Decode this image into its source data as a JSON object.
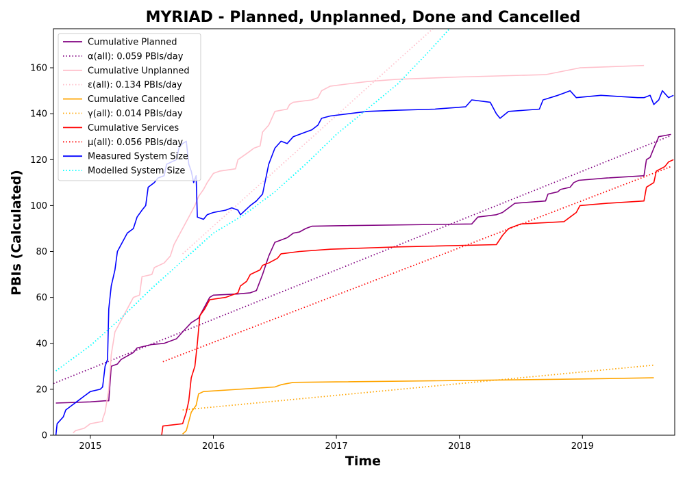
{
  "chart_data": {
    "type": "line",
    "title": "MYRIAD - Planned, Unplanned, Done  and Cancelled",
    "xlabel": "Time",
    "ylabel": "PBIs (Calculated)",
    "xlim": [
      2014.7,
      2019.75
    ],
    "ylim": [
      0,
      177
    ],
    "xticks": [
      2015,
      2016,
      2017,
      2018,
      2019
    ],
    "yticks": [
      0,
      20,
      40,
      60,
      80,
      100,
      120,
      140,
      160
    ],
    "grid": false,
    "legend_position": "top-left",
    "series": [
      {
        "name": "Cumulative Planned",
        "color": "#800080",
        "style": "solid",
        "points": [
          [
            2014.72,
            14
          ],
          [
            2015.0,
            14.5
          ],
          [
            2015.12,
            15
          ],
          [
            2015.15,
            15
          ],
          [
            2015.17,
            30
          ],
          [
            2015.22,
            31
          ],
          [
            2015.25,
            33
          ],
          [
            2015.35,
            36
          ],
          [
            2015.38,
            38
          ],
          [
            2015.5,
            39.5
          ],
          [
            2015.6,
            40
          ],
          [
            2015.7,
            42
          ],
          [
            2015.75,
            45
          ],
          [
            2015.82,
            49
          ],
          [
            2015.88,
            51
          ],
          [
            2015.92,
            55
          ],
          [
            2015.97,
            60
          ],
          [
            2016.0,
            61
          ],
          [
            2016.2,
            61.5
          ],
          [
            2016.3,
            62
          ],
          [
            2016.35,
            63
          ],
          [
            2016.4,
            70
          ],
          [
            2016.45,
            78
          ],
          [
            2016.5,
            84
          ],
          [
            2016.6,
            86
          ],
          [
            2016.65,
            88
          ],
          [
            2016.7,
            88.5
          ],
          [
            2016.75,
            90
          ],
          [
            2016.8,
            91
          ],
          [
            2017.0,
            91.2
          ],
          [
            2018.1,
            92
          ],
          [
            2018.15,
            95
          ],
          [
            2018.3,
            96
          ],
          [
            2018.35,
            97
          ],
          [
            2018.45,
            101
          ],
          [
            2018.7,
            102
          ],
          [
            2018.72,
            105
          ],
          [
            2018.8,
            106
          ],
          [
            2018.82,
            107
          ],
          [
            2018.9,
            108
          ],
          [
            2018.93,
            110
          ],
          [
            2018.97,
            111
          ],
          [
            2019.2,
            112
          ],
          [
            2019.5,
            113
          ],
          [
            2019.52,
            120
          ],
          [
            2019.55,
            121
          ],
          [
            2019.58,
            125
          ],
          [
            2019.62,
            130
          ],
          [
            2019.72,
            131
          ]
        ]
      },
      {
        "name": "α(all): 0.059 PBIs/day",
        "color": "#800080",
        "style": "dotted",
        "points": [
          [
            2014.7,
            22.5
          ],
          [
            2019.72,
            130.5
          ]
        ]
      },
      {
        "name": "Cumulative Unplanned",
        "color": "#ffc0cb",
        "style": "solid",
        "points": [
          [
            2014.86,
            1
          ],
          [
            2014.88,
            2
          ],
          [
            2014.95,
            3
          ],
          [
            2015.0,
            5
          ],
          [
            2015.1,
            6
          ],
          [
            2015.1,
            7
          ],
          [
            2015.12,
            10
          ],
          [
            2015.15,
            20
          ],
          [
            2015.17,
            35
          ],
          [
            2015.2,
            45
          ],
          [
            2015.25,
            50
          ],
          [
            2015.3,
            55
          ],
          [
            2015.35,
            60
          ],
          [
            2015.4,
            61
          ],
          [
            2015.42,
            69
          ],
          [
            2015.5,
            70
          ],
          [
            2015.52,
            73
          ],
          [
            2015.6,
            75
          ],
          [
            2015.65,
            78
          ],
          [
            2015.68,
            83
          ],
          [
            2015.72,
            87
          ],
          [
            2015.8,
            95
          ],
          [
            2015.85,
            100
          ],
          [
            2015.88,
            104
          ],
          [
            2015.92,
            107
          ],
          [
            2015.95,
            110
          ],
          [
            2016.0,
            114
          ],
          [
            2016.05,
            115
          ],
          [
            2016.18,
            116
          ],
          [
            2016.2,
            120
          ],
          [
            2016.28,
            123
          ],
          [
            2016.33,
            125
          ],
          [
            2016.38,
            126
          ],
          [
            2016.4,
            132
          ],
          [
            2016.45,
            135
          ],
          [
            2016.5,
            141
          ],
          [
            2016.6,
            142
          ],
          [
            2016.62,
            144
          ],
          [
            2016.65,
            145
          ],
          [
            2016.8,
            146
          ],
          [
            2016.85,
            147
          ],
          [
            2016.88,
            150
          ],
          [
            2016.95,
            152
          ],
          [
            2017.1,
            153
          ],
          [
            2017.25,
            154
          ],
          [
            2017.5,
            155
          ],
          [
            2018.0,
            156
          ],
          [
            2018.7,
            157
          ],
          [
            2018.98,
            160
          ],
          [
            2019.5,
            161
          ]
        ]
      },
      {
        "name": "ε(all): 0.134 PBIs/day",
        "color": "#ffc0cb",
        "style": "dotted",
        "points": [
          [
            2015.75,
            79
          ],
          [
            2017.95,
            185
          ]
        ]
      },
      {
        "name": "Cumulative Cancelled",
        "color": "#ffa500",
        "style": "solid",
        "points": [
          [
            2015.75,
            0.5
          ],
          [
            2015.78,
            2
          ],
          [
            2015.82,
            10
          ],
          [
            2015.86,
            13
          ],
          [
            2015.88,
            18
          ],
          [
            2015.92,
            19
          ],
          [
            2016.5,
            21
          ],
          [
            2016.55,
            22
          ],
          [
            2016.65,
            23
          ],
          [
            2017.0,
            23.2
          ],
          [
            2018.0,
            23.8
          ],
          [
            2019.0,
            24.5
          ],
          [
            2019.58,
            25
          ]
        ]
      },
      {
        "name": "γ(all): 0.014 PBIs/day",
        "color": "#ffa500",
        "style": "dotted",
        "points": [
          [
            2015.75,
            11
          ],
          [
            2019.58,
            30.5
          ]
        ]
      },
      {
        "name": "Cumulative Services",
        "color": "#ff0000",
        "style": "solid",
        "points": [
          [
            2015.58,
            0.2
          ],
          [
            2015.59,
            4
          ],
          [
            2015.75,
            5
          ],
          [
            2015.78,
            10
          ],
          [
            2015.8,
            15
          ],
          [
            2015.82,
            25
          ],
          [
            2015.85,
            30
          ],
          [
            2015.87,
            40
          ],
          [
            2015.89,
            52
          ],
          [
            2015.93,
            55
          ],
          [
            2015.97,
            59
          ],
          [
            2016.1,
            60
          ],
          [
            2016.2,
            62
          ],
          [
            2016.22,
            65
          ],
          [
            2016.27,
            67
          ],
          [
            2016.3,
            70
          ],
          [
            2016.38,
            72
          ],
          [
            2016.4,
            74
          ],
          [
            2016.45,
            75
          ],
          [
            2016.52,
            77
          ],
          [
            2016.55,
            79
          ],
          [
            2016.7,
            80
          ],
          [
            2016.95,
            81
          ],
          [
            2017.5,
            82
          ],
          [
            2018.3,
            83
          ],
          [
            2018.35,
            87
          ],
          [
            2018.4,
            90
          ],
          [
            2018.5,
            92
          ],
          [
            2018.85,
            93
          ],
          [
            2018.9,
            95
          ],
          [
            2018.95,
            97
          ],
          [
            2018.98,
            100
          ],
          [
            2019.2,
            101
          ],
          [
            2019.5,
            102
          ],
          [
            2019.52,
            108
          ],
          [
            2019.58,
            110
          ],
          [
            2019.6,
            115
          ],
          [
            2019.67,
            117
          ],
          [
            2019.7,
            119
          ],
          [
            2019.74,
            120
          ]
        ]
      },
      {
        "name": "μ(all): 0.056 PBIs/day",
        "color": "#ff0000",
        "style": "dotted",
        "points": [
          [
            2015.59,
            32
          ],
          [
            2019.72,
            117
          ]
        ]
      },
      {
        "name": "Measured System Size",
        "color": "#0000ff",
        "style": "solid",
        "points": [
          [
            2014.72,
            0
          ],
          [
            2014.73,
            5
          ],
          [
            2014.78,
            8
          ],
          [
            2014.8,
            11
          ],
          [
            2014.85,
            13
          ],
          [
            2014.9,
            15
          ],
          [
            2014.95,
            17
          ],
          [
            2015.0,
            19
          ],
          [
            2015.08,
            20
          ],
          [
            2015.1,
            21
          ],
          [
            2015.12,
            30
          ],
          [
            2015.14,
            33
          ],
          [
            2015.15,
            55
          ],
          [
            2015.17,
            65
          ],
          [
            2015.2,
            72
          ],
          [
            2015.22,
            80
          ],
          [
            2015.27,
            85
          ],
          [
            2015.3,
            88
          ],
          [
            2015.35,
            90
          ],
          [
            2015.38,
            95
          ],
          [
            2015.42,
            98
          ],
          [
            2015.45,
            100
          ],
          [
            2015.47,
            108
          ],
          [
            2015.52,
            110
          ],
          [
            2015.55,
            112
          ],
          [
            2015.6,
            113
          ],
          [
            2015.62,
            118
          ],
          [
            2015.7,
            120
          ],
          [
            2015.72,
            125
          ],
          [
            2015.75,
            127
          ],
          [
            2015.78,
            128
          ],
          [
            2015.8,
            118
          ],
          [
            2015.82,
            115
          ],
          [
            2015.84,
            110
          ],
          [
            2015.86,
            113
          ],
          [
            2015.87,
            95
          ],
          [
            2015.92,
            94
          ],
          [
            2015.95,
            96
          ],
          [
            2016.0,
            97
          ],
          [
            2016.1,
            98
          ],
          [
            2016.15,
            99
          ],
          [
            2016.2,
            98
          ],
          [
            2016.22,
            96
          ],
          [
            2016.3,
            100
          ],
          [
            2016.35,
            102
          ],
          [
            2016.4,
            105
          ],
          [
            2016.45,
            118
          ],
          [
            2016.5,
            125
          ],
          [
            2016.55,
            128
          ],
          [
            2016.6,
            127
          ],
          [
            2016.65,
            130
          ],
          [
            2016.75,
            132
          ],
          [
            2016.8,
            133
          ],
          [
            2016.85,
            135
          ],
          [
            2016.88,
            138
          ],
          [
            2016.95,
            139
          ],
          [
            2017.1,
            140
          ],
          [
            2017.25,
            141
          ],
          [
            2017.5,
            141.5
          ],
          [
            2017.8,
            142
          ],
          [
            2018.05,
            143
          ],
          [
            2018.1,
            146
          ],
          [
            2018.25,
            145
          ],
          [
            2018.3,
            140
          ],
          [
            2018.33,
            138
          ],
          [
            2018.4,
            141
          ],
          [
            2018.65,
            142
          ],
          [
            2018.68,
            146
          ],
          [
            2018.8,
            148
          ],
          [
            2018.85,
            149
          ],
          [
            2018.9,
            150
          ],
          [
            2018.95,
            147
          ],
          [
            2019.15,
            148
          ],
          [
            2019.45,
            147
          ],
          [
            2019.5,
            147
          ],
          [
            2019.55,
            148
          ],
          [
            2019.58,
            144
          ],
          [
            2019.62,
            146
          ],
          [
            2019.65,
            150
          ],
          [
            2019.7,
            147
          ],
          [
            2019.74,
            148
          ]
        ]
      },
      {
        "name": "Modelled System Size",
        "color": "#00ffff",
        "style": "dotted",
        "points": [
          [
            2014.72,
            28
          ],
          [
            2015.0,
            39
          ],
          [
            2015.25,
            51
          ],
          [
            2015.5,
            64
          ],
          [
            2015.75,
            76
          ],
          [
            2016.0,
            88
          ],
          [
            2016.25,
            96
          ],
          [
            2016.5,
            106
          ],
          [
            2016.75,
            118
          ],
          [
            2017.0,
            131
          ],
          [
            2017.25,
            142
          ],
          [
            2017.5,
            153
          ],
          [
            2017.75,
            167
          ],
          [
            2017.92,
            177
          ]
        ]
      }
    ]
  }
}
